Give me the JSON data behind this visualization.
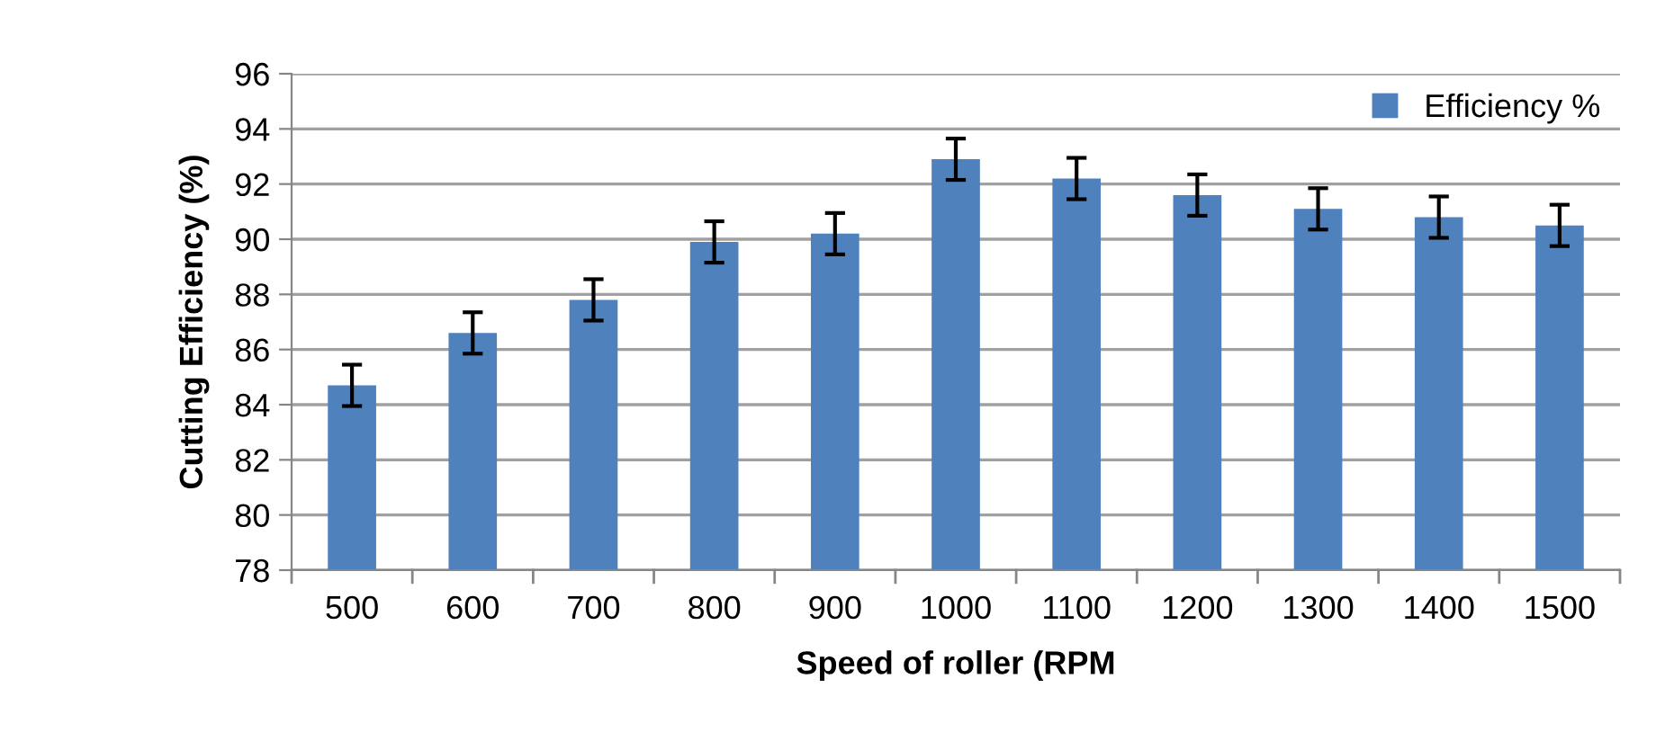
{
  "chart_data": {
    "type": "bar",
    "xlabel": "Speed of roller (RPM",
    "ylabel": "Cutting Efficiency (%)",
    "categories": [
      "500",
      "600",
      "700",
      "800",
      "900",
      "1000",
      "1100",
      "1200",
      "1300",
      "1400",
      "1500"
    ],
    "series": [
      {
        "name": "Efficiency %",
        "color": "#4f81bd",
        "values": [
          84.7,
          86.6,
          87.8,
          89.9,
          90.2,
          92.9,
          92.2,
          91.6,
          91.1,
          90.8,
          90.5
        ],
        "errors": [
          0.75,
          0.75,
          0.75,
          0.75,
          0.75,
          0.75,
          0.75,
          0.75,
          0.75,
          0.75,
          0.75
        ]
      }
    ],
    "ylim": [
      78,
      96
    ],
    "yticks": [
      78,
      80,
      82,
      84,
      86,
      88,
      90,
      92,
      94,
      96
    ],
    "grid": "y",
    "legend": "top right"
  }
}
